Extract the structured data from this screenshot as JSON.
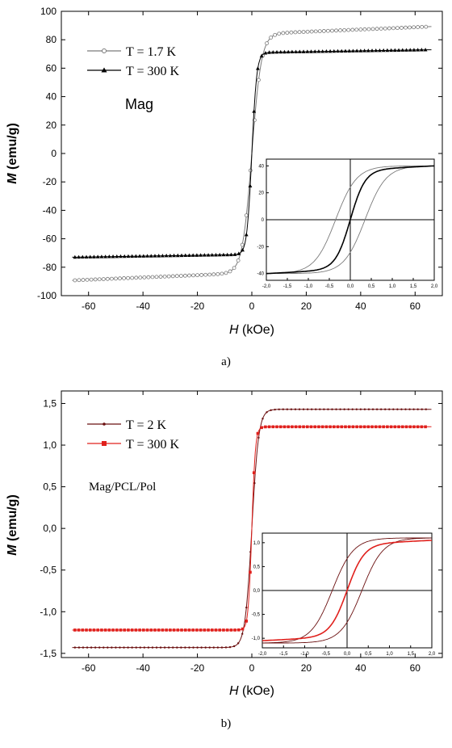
{
  "chart_data": [
    {
      "type": "line",
      "caption": "a)",
      "xlabel_italic": "H",
      "xlabel_unit": "(kOe)",
      "ylabel_italic": "M",
      "ylabel_unit": "(emu/g)",
      "xlim": [
        -70,
        70
      ],
      "ylim": [
        -100,
        100
      ],
      "xticks": [
        -60,
        -40,
        -20,
        0,
        20,
        40,
        60
      ],
      "yticks": [
        -100,
        -80,
        -60,
        -40,
        -20,
        0,
        20,
        40,
        60,
        80,
        100
      ],
      "xtick_labels": [
        "-60",
        "-40",
        "-20",
        "0",
        "20",
        "40",
        "60"
      ],
      "ytick_labels": [
        "-100",
        "-80",
        "-60",
        "-40",
        "-20",
        "0",
        "20",
        "40",
        "60",
        "80",
        "100"
      ],
      "annotation": "Mag",
      "legend_position": "top-left",
      "series": [
        {
          "name": "T = 1.7 K",
          "marker": "open-circle",
          "color": "#7a7a7a",
          "Ms": 84,
          "a": 3.5,
          "slope": 0.08
        },
        {
          "name": "T = 300 K",
          "marker": "filled-triangle",
          "color": "#000000",
          "Ms": 71,
          "a": 1.8,
          "slope": 0.03
        }
      ],
      "inset": {
        "xlim": [
          -2,
          2
        ],
        "ylim": [
          -45,
          45
        ],
        "xtick_labels": [
          "-2,0",
          "-1,5",
          "-1,0",
          "-0,5",
          "0,0",
          "0,5",
          "1,0",
          "1,5",
          "2,0"
        ],
        "ytick_labels": [
          "-40",
          "-20",
          "0",
          "20",
          "40"
        ],
        "loop_ms": 40,
        "loop_hc": 0.35,
        "loop_w": 0.5,
        "curve_ms": 40,
        "curve_w": 0.35
      }
    },
    {
      "type": "line",
      "caption": "b)",
      "xlabel_italic": "H",
      "xlabel_unit": "(kOe)",
      "ylabel_italic": "M",
      "ylabel_unit": "(emu/g)",
      "xlim": [
        -70,
        70
      ],
      "ylim": [
        -1.55,
        1.65
      ],
      "xticks": [
        -60,
        -40,
        -20,
        0,
        20,
        40,
        60
      ],
      "yticks": [
        -1.5,
        -1.0,
        -0.5,
        0.0,
        0.5,
        1.0,
        1.5
      ],
      "xtick_labels": [
        "-60",
        "-40",
        "-20",
        "0",
        "20",
        "40",
        "60"
      ],
      "ytick_labels": [
        "-1,5",
        "-1,0",
        "-0,5",
        "0,0",
        "0,5",
        "1,0",
        "1,5"
      ],
      "annotation": "Mag/PCL/Pol",
      "legend_position": "top-left",
      "series": [
        {
          "name": "T = 2 K",
          "marker": "small-dot",
          "color": "#6b1010",
          "Ms": 1.43,
          "a": 2.5,
          "slope": 0.0
        },
        {
          "name": "T = 300 K",
          "marker": "filled-square",
          "color": "#e0201c",
          "Ms": 1.22,
          "a": 1.3,
          "slope": 0.0
        }
      ],
      "inset": {
        "xlim": [
          -2,
          2
        ],
        "ylim": [
          -1.2,
          1.2
        ],
        "xtick_labels": [
          "-2,0",
          "-1,5",
          "-1,0",
          "-0,5",
          "0,0",
          "0,5",
          "1,0",
          "1,5",
          "2,0"
        ],
        "ytick_labels": [
          "-1,0",
          "-0,5",
          "0,0",
          "0,5",
          "1,0"
        ],
        "loop_ms": 1.1,
        "loop_hc": 0.35,
        "loop_w": 0.5,
        "curve_ms": 1.05,
        "curve_w": 0.4
      }
    }
  ]
}
